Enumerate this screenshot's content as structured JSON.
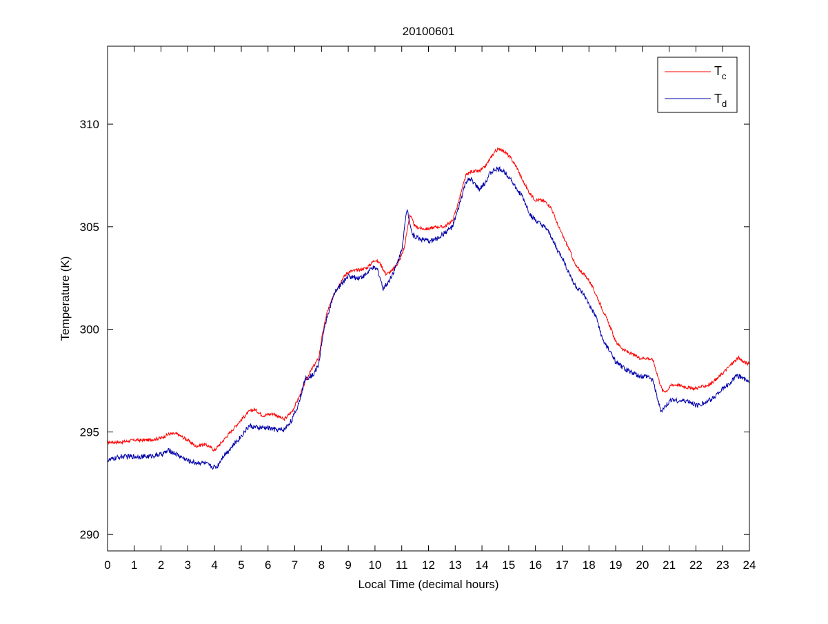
{
  "chart_data": {
    "type": "line",
    "title": "20100601",
    "xlabel": "Local Time (decimal hours)",
    "ylabel": "Temperature (K)",
    "xlim": [
      0,
      24
    ],
    "ylim": [
      289.2,
      313.8
    ],
    "xticks": [
      0,
      1,
      2,
      3,
      4,
      5,
      6,
      7,
      8,
      9,
      10,
      11,
      12,
      13,
      14,
      15,
      16,
      17,
      18,
      19,
      20,
      21,
      22,
      23,
      24
    ],
    "yticks": [
      290,
      295,
      300,
      305,
      310
    ],
    "grid": false,
    "legend_position": "top-right",
    "series": [
      {
        "name": "Tc",
        "legend_main": "T",
        "legend_sub": "c",
        "color": "#ff0000",
        "noise": 0.08,
        "points": [
          [
            0,
            294.5
          ],
          [
            0.5,
            294.5
          ],
          [
            1,
            294.6
          ],
          [
            1.5,
            294.6
          ],
          [
            2,
            294.7
          ],
          [
            2.3,
            294.9
          ],
          [
            2.6,
            294.9
          ],
          [
            3,
            294.6
          ],
          [
            3.3,
            294.3
          ],
          [
            3.6,
            294.4
          ],
          [
            3.8,
            294.3
          ],
          [
            4.0,
            294.1
          ],
          [
            4.2,
            294.4
          ],
          [
            4.6,
            295.0
          ],
          [
            5.0,
            295.6
          ],
          [
            5.3,
            296.0
          ],
          [
            5.5,
            296.1
          ],
          [
            5.8,
            295.8
          ],
          [
            6.2,
            295.9
          ],
          [
            6.6,
            295.6
          ],
          [
            6.9,
            296.0
          ],
          [
            7.2,
            296.8
          ],
          [
            7.4,
            297.5
          ],
          [
            7.7,
            298.2
          ],
          [
            7.9,
            298.6
          ],
          [
            8.0,
            299.5
          ],
          [
            8.2,
            300.8
          ],
          [
            8.5,
            301.8
          ],
          [
            8.8,
            302.5
          ],
          [
            9.0,
            302.8
          ],
          [
            9.4,
            302.9
          ],
          [
            9.7,
            303.0
          ],
          [
            10.0,
            303.4
          ],
          [
            10.2,
            303.2
          ],
          [
            10.4,
            302.7
          ],
          [
            10.6,
            302.8
          ],
          [
            10.9,
            303.3
          ],
          [
            11.1,
            304.0
          ],
          [
            11.3,
            305.6
          ],
          [
            11.5,
            305.0
          ],
          [
            11.8,
            304.9
          ],
          [
            12.0,
            304.9
          ],
          [
            12.3,
            305.0
          ],
          [
            12.6,
            305.0
          ],
          [
            12.9,
            305.3
          ],
          [
            13.1,
            306.1
          ],
          [
            13.4,
            307.5
          ],
          [
            13.6,
            307.7
          ],
          [
            13.9,
            307.7
          ],
          [
            14.1,
            307.9
          ],
          [
            14.3,
            308.3
          ],
          [
            14.5,
            308.7
          ],
          [
            14.7,
            308.8
          ],
          [
            14.9,
            308.6
          ],
          [
            15.1,
            308.3
          ],
          [
            15.3,
            307.9
          ],
          [
            15.5,
            307.3
          ],
          [
            15.8,
            306.6
          ],
          [
            16.0,
            306.3
          ],
          [
            16.2,
            306.3
          ],
          [
            16.4,
            306.2
          ],
          [
            16.6,
            305.9
          ],
          [
            16.8,
            305.2
          ],
          [
            17.0,
            304.6
          ],
          [
            17.3,
            303.8
          ],
          [
            17.5,
            303.1
          ],
          [
            17.8,
            302.7
          ],
          [
            18.0,
            302.4
          ],
          [
            18.3,
            301.6
          ],
          [
            18.6,
            300.7
          ],
          [
            18.8,
            300.1
          ],
          [
            19.0,
            299.4
          ],
          [
            19.3,
            299.0
          ],
          [
            19.6,
            298.8
          ],
          [
            19.9,
            298.6
          ],
          [
            20.2,
            298.6
          ],
          [
            20.4,
            298.5
          ],
          [
            20.6,
            297.6
          ],
          [
            20.75,
            297.0
          ],
          [
            20.9,
            297.0
          ],
          [
            21.1,
            297.3
          ],
          [
            21.3,
            297.3
          ],
          [
            21.6,
            297.2
          ],
          [
            21.9,
            297.1
          ],
          [
            22.2,
            297.2
          ],
          [
            22.5,
            297.3
          ],
          [
            22.8,
            297.6
          ],
          [
            23.1,
            298.0
          ],
          [
            23.4,
            298.4
          ],
          [
            23.6,
            298.6
          ],
          [
            23.8,
            298.4
          ],
          [
            24.0,
            298.3
          ]
        ]
      },
      {
        "name": "Td",
        "legend_main": "T",
        "legend_sub": "d",
        "color": "#0000aa",
        "noise": 0.12,
        "points": [
          [
            0,
            293.6
          ],
          [
            0.5,
            293.8
          ],
          [
            1,
            293.8
          ],
          [
            1.5,
            293.8
          ],
          [
            2,
            293.9
          ],
          [
            2.3,
            294.1
          ],
          [
            2.6,
            293.9
          ],
          [
            3,
            293.6
          ],
          [
            3.3,
            293.5
          ],
          [
            3.6,
            293.5
          ],
          [
            3.9,
            293.3
          ],
          [
            4.1,
            293.3
          ],
          [
            4.3,
            293.8
          ],
          [
            4.6,
            294.2
          ],
          [
            5.0,
            294.8
          ],
          [
            5.3,
            295.3
          ],
          [
            5.6,
            295.2
          ],
          [
            6.0,
            295.2
          ],
          [
            6.3,
            295.1
          ],
          [
            6.6,
            295.1
          ],
          [
            6.9,
            295.6
          ],
          [
            7.1,
            296.2
          ],
          [
            7.4,
            297.6
          ],
          [
            7.7,
            297.8
          ],
          [
            7.9,
            298.3
          ],
          [
            8.0,
            299.3
          ],
          [
            8.2,
            300.6
          ],
          [
            8.5,
            301.8
          ],
          [
            8.8,
            302.3
          ],
          [
            9.0,
            302.6
          ],
          [
            9.3,
            302.5
          ],
          [
            9.6,
            302.6
          ],
          [
            9.9,
            303.0
          ],
          [
            10.1,
            302.9
          ],
          [
            10.3,
            302.0
          ],
          [
            10.5,
            302.3
          ],
          [
            10.8,
            303.1
          ],
          [
            11.0,
            303.9
          ],
          [
            11.2,
            305.9
          ],
          [
            11.4,
            304.6
          ],
          [
            11.7,
            304.4
          ],
          [
            12.0,
            304.3
          ],
          [
            12.3,
            304.4
          ],
          [
            12.6,
            304.7
          ],
          [
            12.9,
            305.0
          ],
          [
            13.1,
            305.8
          ],
          [
            13.4,
            307.2
          ],
          [
            13.6,
            307.3
          ],
          [
            13.9,
            306.8
          ],
          [
            14.1,
            307.1
          ],
          [
            14.3,
            307.6
          ],
          [
            14.5,
            307.8
          ],
          [
            14.7,
            307.8
          ],
          [
            14.9,
            307.6
          ],
          [
            15.1,
            307.3
          ],
          [
            15.3,
            306.8
          ],
          [
            15.5,
            306.5
          ],
          [
            15.8,
            305.6
          ],
          [
            16.0,
            305.3
          ],
          [
            16.2,
            305.1
          ],
          [
            16.4,
            304.9
          ],
          [
            16.6,
            304.5
          ],
          [
            16.8,
            303.9
          ],
          [
            17.0,
            303.5
          ],
          [
            17.3,
            302.6
          ],
          [
            17.5,
            302.1
          ],
          [
            17.8,
            301.7
          ],
          [
            18.0,
            301.2
          ],
          [
            18.3,
            300.5
          ],
          [
            18.5,
            299.5
          ],
          [
            18.8,
            298.9
          ],
          [
            19.0,
            298.4
          ],
          [
            19.3,
            298.1
          ],
          [
            19.6,
            297.9
          ],
          [
            19.9,
            297.7
          ],
          [
            20.2,
            297.7
          ],
          [
            20.4,
            297.5
          ],
          [
            20.6,
            296.4
          ],
          [
            20.7,
            296.0
          ],
          [
            20.9,
            296.3
          ],
          [
            21.1,
            296.6
          ],
          [
            21.4,
            296.5
          ],
          [
            21.7,
            296.5
          ],
          [
            22.0,
            296.3
          ],
          [
            22.3,
            296.4
          ],
          [
            22.6,
            296.6
          ],
          [
            22.9,
            297.0
          ],
          [
            23.2,
            297.3
          ],
          [
            23.5,
            297.7
          ],
          [
            23.7,
            297.7
          ],
          [
            23.9,
            297.5
          ],
          [
            24.0,
            297.4
          ]
        ]
      }
    ]
  }
}
